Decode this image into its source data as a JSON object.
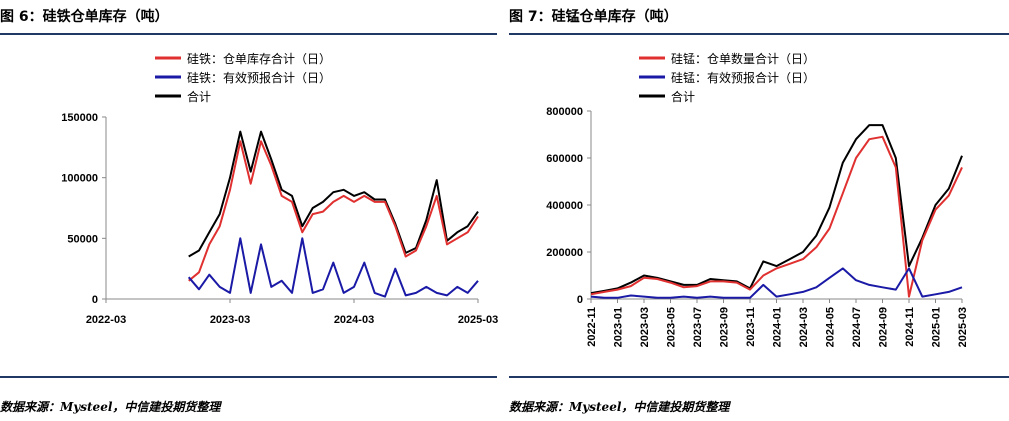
{
  "charts": [
    {
      "figure_title": "图 6：硅铁仓单库存（吨）",
      "source": "数据来源：Mysteel，中信建投期货整理",
      "chart_data": {
        "type": "line",
        "title": "图 6：硅铁仓单库存（吨）",
        "ylim": [
          0,
          150000
        ],
        "yticks": [
          0,
          50000,
          100000,
          150000
        ],
        "xlim": [
          "2022-03",
          "2025-03"
        ],
        "xticks": [
          "2022-03",
          "2023-03",
          "2024-03",
          "2025-03"
        ],
        "grid": false,
        "legend_position": "top",
        "series": [
          {
            "name": "硅铁：仓单库存合计（日）",
            "color": "#e03030",
            "points": [
              [
                "2022-11",
                15000
              ],
              [
                "2022-12",
                22000
              ],
              [
                "2023-01",
                45000
              ],
              [
                "2023-02",
                60000
              ],
              [
                "2023-03",
                90000
              ],
              [
                "2023-04",
                130000
              ],
              [
                "2023-05",
                95000
              ],
              [
                "2023-06",
                130000
              ],
              [
                "2023-07",
                110000
              ],
              [
                "2023-08",
                85000
              ],
              [
                "2023-09",
                80000
              ],
              [
                "2023-10",
                55000
              ],
              [
                "2023-11",
                70000
              ],
              [
                "2023-12",
                72000
              ],
              [
                "2024-01",
                80000
              ],
              [
                "2024-02",
                85000
              ],
              [
                "2024-03",
                80000
              ],
              [
                "2024-04",
                85000
              ],
              [
                "2024-05",
                80000
              ],
              [
                "2024-06",
                80000
              ],
              [
                "2024-07",
                60000
              ],
              [
                "2024-08",
                35000
              ],
              [
                "2024-09",
                40000
              ],
              [
                "2024-10",
                60000
              ],
              [
                "2024-11",
                85000
              ],
              [
                "2024-12",
                45000
              ],
              [
                "2025-01",
                50000
              ],
              [
                "2025-02",
                55000
              ],
              [
                "2025-03",
                68000
              ]
            ]
          },
          {
            "name": "硅铁：有效预报合计（日）",
            "color": "#1a1aa6",
            "points": [
              [
                "2022-11",
                18000
              ],
              [
                "2022-12",
                8000
              ],
              [
                "2023-01",
                20000
              ],
              [
                "2023-02",
                10000
              ],
              [
                "2023-03",
                5000
              ],
              [
                "2023-04",
                50000
              ],
              [
                "2023-05",
                5000
              ],
              [
                "2023-06",
                45000
              ],
              [
                "2023-07",
                10000
              ],
              [
                "2023-08",
                15000
              ],
              [
                "2023-09",
                5000
              ],
              [
                "2023-10",
                50000
              ],
              [
                "2023-11",
                5000
              ],
              [
                "2023-12",
                8000
              ],
              [
                "2024-01",
                30000
              ],
              [
                "2024-02",
                5000
              ],
              [
                "2024-03",
                10000
              ],
              [
                "2024-04",
                30000
              ],
              [
                "2024-05",
                5000
              ],
              [
                "2024-06",
                2000
              ],
              [
                "2024-07",
                25000
              ],
              [
                "2024-08",
                3000
              ],
              [
                "2024-09",
                5000
              ],
              [
                "2024-10",
                10000
              ],
              [
                "2024-11",
                5000
              ],
              [
                "2024-12",
                3000
              ],
              [
                "2025-01",
                10000
              ],
              [
                "2025-02",
                5000
              ],
              [
                "2025-03",
                15000
              ]
            ]
          },
          {
            "name": "合计",
            "color": "#000000",
            "points": [
              [
                "2022-11",
                35000
              ],
              [
                "2022-12",
                40000
              ],
              [
                "2023-01",
                55000
              ],
              [
                "2023-02",
                70000
              ],
              [
                "2023-03",
                100000
              ],
              [
                "2023-04",
                138000
              ],
              [
                "2023-05",
                105000
              ],
              [
                "2023-06",
                138000
              ],
              [
                "2023-07",
                115000
              ],
              [
                "2023-08",
                90000
              ],
              [
                "2023-09",
                85000
              ],
              [
                "2023-10",
                60000
              ],
              [
                "2023-11",
                75000
              ],
              [
                "2023-12",
                80000
              ],
              [
                "2024-01",
                88000
              ],
              [
                "2024-02",
                90000
              ],
              [
                "2024-03",
                85000
              ],
              [
                "2024-04",
                88000
              ],
              [
                "2024-05",
                82000
              ],
              [
                "2024-06",
                82000
              ],
              [
                "2024-07",
                62000
              ],
              [
                "2024-08",
                38000
              ],
              [
                "2024-09",
                42000
              ],
              [
                "2024-10",
                65000
              ],
              [
                "2024-11",
                98000
              ],
              [
                "2024-12",
                48000
              ],
              [
                "2025-01",
                55000
              ],
              [
                "2025-02",
                60000
              ],
              [
                "2025-03",
                72000
              ]
            ]
          }
        ]
      }
    },
    {
      "figure_title": "图 7：硅锰仓单库存（吨）",
      "source": "数据来源：Mysteel，中信建投期货整理",
      "chart_data": {
        "type": "line",
        "title": "图 7：硅锰仓单库存（吨）",
        "ylim": [
          0,
          800000
        ],
        "yticks": [
          0,
          200000,
          400000,
          600000,
          800000
        ],
        "xlim": [
          "2022-11",
          "2025-03"
        ],
        "xticks": [
          "2022-11",
          "2023-01",
          "2023-03",
          "2023-05",
          "2023-07",
          "2023-09",
          "2023-11",
          "2024-01",
          "2024-03",
          "2024-05",
          "2024-07",
          "2024-09",
          "2024-11",
          "2025-01",
          "2025-03"
        ],
        "xtick_rotation": -90,
        "grid": false,
        "legend_position": "top",
        "series": [
          {
            "name": "硅锰：仓单数量合计（日）",
            "color": "#e03030",
            "points": [
              [
                "2022-11",
                20000
              ],
              [
                "2022-12",
                30000
              ],
              [
                "2023-01",
                40000
              ],
              [
                "2023-02",
                55000
              ],
              [
                "2023-03",
                90000
              ],
              [
                "2023-04",
                85000
              ],
              [
                "2023-05",
                70000
              ],
              [
                "2023-06",
                50000
              ],
              [
                "2023-07",
                55000
              ],
              [
                "2023-08",
                75000
              ],
              [
                "2023-09",
                75000
              ],
              [
                "2023-10",
                70000
              ],
              [
                "2023-11",
                40000
              ],
              [
                "2023-12",
                100000
              ],
              [
                "2024-01",
                130000
              ],
              [
                "2024-02",
                150000
              ],
              [
                "2024-03",
                170000
              ],
              [
                "2024-04",
                220000
              ],
              [
                "2024-05",
                300000
              ],
              [
                "2024-06",
                450000
              ],
              [
                "2024-07",
                600000
              ],
              [
                "2024-08",
                680000
              ],
              [
                "2024-09",
                690000
              ],
              [
                "2024-10",
                560000
              ],
              [
                "2024-11",
                10000
              ],
              [
                "2024-12",
                250000
              ],
              [
                "2025-01",
                380000
              ],
              [
                "2025-02",
                440000
              ],
              [
                "2025-03",
                560000
              ]
            ]
          },
          {
            "name": "硅锰：有效预报合计（日）",
            "color": "#1a1aa6",
            "points": [
              [
                "2022-11",
                10000
              ],
              [
                "2022-12",
                5000
              ],
              [
                "2023-01",
                5000
              ],
              [
                "2023-02",
                15000
              ],
              [
                "2023-03",
                10000
              ],
              [
                "2023-04",
                5000
              ],
              [
                "2023-05",
                5000
              ],
              [
                "2023-06",
                10000
              ],
              [
                "2023-07",
                5000
              ],
              [
                "2023-08",
                10000
              ],
              [
                "2023-09",
                5000
              ],
              [
                "2023-10",
                5000
              ],
              [
                "2023-11",
                5000
              ],
              [
                "2023-12",
                60000
              ],
              [
                "2024-01",
                10000
              ],
              [
                "2024-02",
                20000
              ],
              [
                "2024-03",
                30000
              ],
              [
                "2024-04",
                50000
              ],
              [
                "2024-05",
                90000
              ],
              [
                "2024-06",
                130000
              ],
              [
                "2024-07",
                80000
              ],
              [
                "2024-08",
                60000
              ],
              [
                "2024-09",
                50000
              ],
              [
                "2024-10",
                40000
              ],
              [
                "2024-11",
                130000
              ],
              [
                "2024-12",
                10000
              ],
              [
                "2025-01",
                20000
              ],
              [
                "2025-02",
                30000
              ],
              [
                "2025-03",
                50000
              ]
            ]
          },
          {
            "name": "合计",
            "color": "#000000",
            "points": [
              [
                "2022-11",
                25000
              ],
              [
                "2022-12",
                35000
              ],
              [
                "2023-01",
                45000
              ],
              [
                "2023-02",
                70000
              ],
              [
                "2023-03",
                100000
              ],
              [
                "2023-04",
                90000
              ],
              [
                "2023-05",
                75000
              ],
              [
                "2023-06",
                60000
              ],
              [
                "2023-07",
                60000
              ],
              [
                "2023-08",
                85000
              ],
              [
                "2023-09",
                80000
              ],
              [
                "2023-10",
                75000
              ],
              [
                "2023-11",
                45000
              ],
              [
                "2023-12",
                160000
              ],
              [
                "2024-01",
                140000
              ],
              [
                "2024-02",
                170000
              ],
              [
                "2024-03",
                200000
              ],
              [
                "2024-04",
                270000
              ],
              [
                "2024-05",
                390000
              ],
              [
                "2024-06",
                580000
              ],
              [
                "2024-07",
                680000
              ],
              [
                "2024-08",
                740000
              ],
              [
                "2024-09",
                740000
              ],
              [
                "2024-10",
                600000
              ],
              [
                "2024-11",
                140000
              ],
              [
                "2024-12",
                260000
              ],
              [
                "2025-01",
                400000
              ],
              [
                "2025-02",
                470000
              ],
              [
                "2025-03",
                610000
              ]
            ]
          }
        ]
      }
    }
  ]
}
